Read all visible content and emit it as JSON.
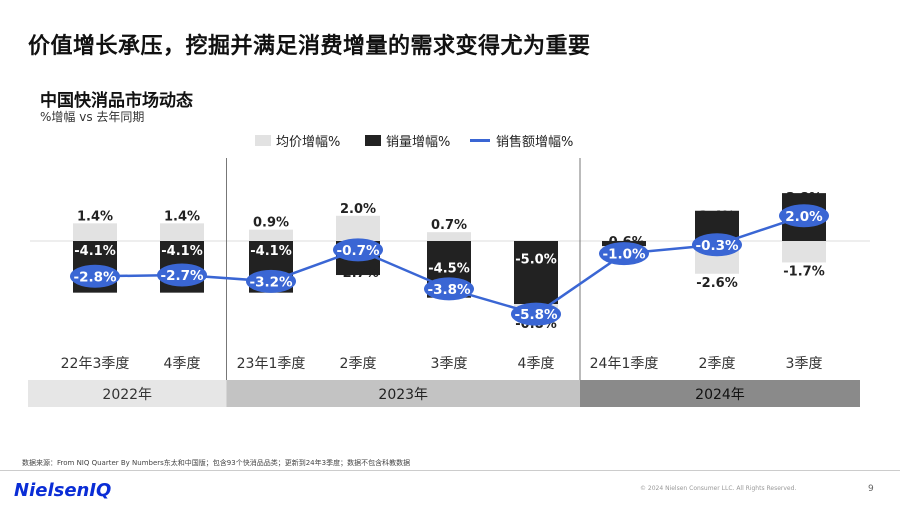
{
  "headline": "价值增长承压，挖掘并满足消费增量的需求变得尤为重要",
  "footer": {
    "source": "数据来源：From NIQ Quarter By Numbers东太和中国版；包含93个快消品品类；更新到24年3季度；数据不包含科教数据",
    "logo": "NielsenIQ",
    "copyright": "© 2024 Nielsen Consumer LLC. All Rights Reserved.",
    "page": "9"
  },
  "colors": {
    "avg_price": "#e2e2e2",
    "volume": "#222222",
    "sales": "#3a66d4",
    "year_band_2022": "#e6e6e6",
    "year_band_2023": "#c3c3c3",
    "year_band_2024": "#8a8a8a"
  },
  "chart_data": {
    "type": "bar",
    "title": "中国快消品市场动态",
    "subtitle": "%增幅 vs 去年同期",
    "legend_position": "top",
    "categories": [
      "22年3季度",
      "4季度",
      "23年1季度",
      "2季度",
      "3季度",
      "4季度",
      "24年1季度",
      "2季度",
      "3季度"
    ],
    "year_groups": [
      {
        "label": "2022年",
        "count": 2
      },
      {
        "label": "2023年",
        "count": 4
      },
      {
        "label": "2024年",
        "count": 3
      }
    ],
    "series": [
      {
        "name": "均价增幅%",
        "type": "bar",
        "values": [
          1.4,
          1.4,
          0.9,
          2.0,
          0.7,
          -0.8,
          -0.6,
          -2.6,
          -1.7
        ],
        "labels": [
          "1.4%",
          "1.4%",
          "0.9%",
          "2.0%",
          "0.7%",
          "-0.8%",
          "-0.6%",
          "-2.6%",
          "-1.7%"
        ]
      },
      {
        "name": "销量增幅%",
        "type": "bar",
        "values": [
          -4.1,
          -4.1,
          -4.1,
          -2.7,
          -4.5,
          -5.0,
          -0.4,
          2.4,
          3.8
        ],
        "labels": [
          "-4.1%",
          "-4.1%",
          "-4.1%",
          "-2.7%",
          "-4.5%",
          "-5.0%",
          "",
          "2.4%",
          "3.8%"
        ]
      },
      {
        "name": "销售额增幅%",
        "type": "line",
        "values": [
          -2.8,
          -2.7,
          -3.2,
          -0.7,
          -3.8,
          -5.8,
          -1.0,
          -0.3,
          2.0
        ],
        "labels": [
          "-2.8%",
          "-2.7%",
          "-3.2%",
          "-0.7%",
          "-3.8%",
          "-5.8%",
          "-1.0%",
          "-0.3%",
          "2.0%"
        ]
      }
    ]
  }
}
